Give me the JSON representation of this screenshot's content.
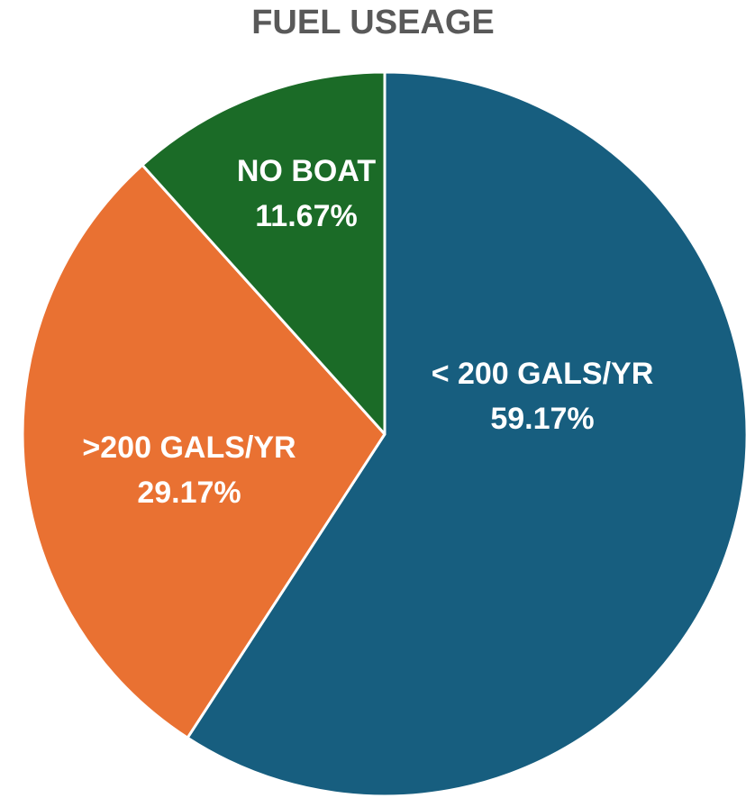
{
  "chart_data": {
    "type": "pie",
    "title": "FUEL USEAGE",
    "categories": [
      "< 200 GALS/YR",
      ">200 GALS/YR",
      "NO BOAT"
    ],
    "values": [
      59.17,
      29.17,
      11.67
    ],
    "value_labels": [
      "59.17%",
      "29.17%",
      "11.67%"
    ],
    "colors": [
      "#175e7f",
      "#e97132",
      "#1b6b27"
    ]
  }
}
